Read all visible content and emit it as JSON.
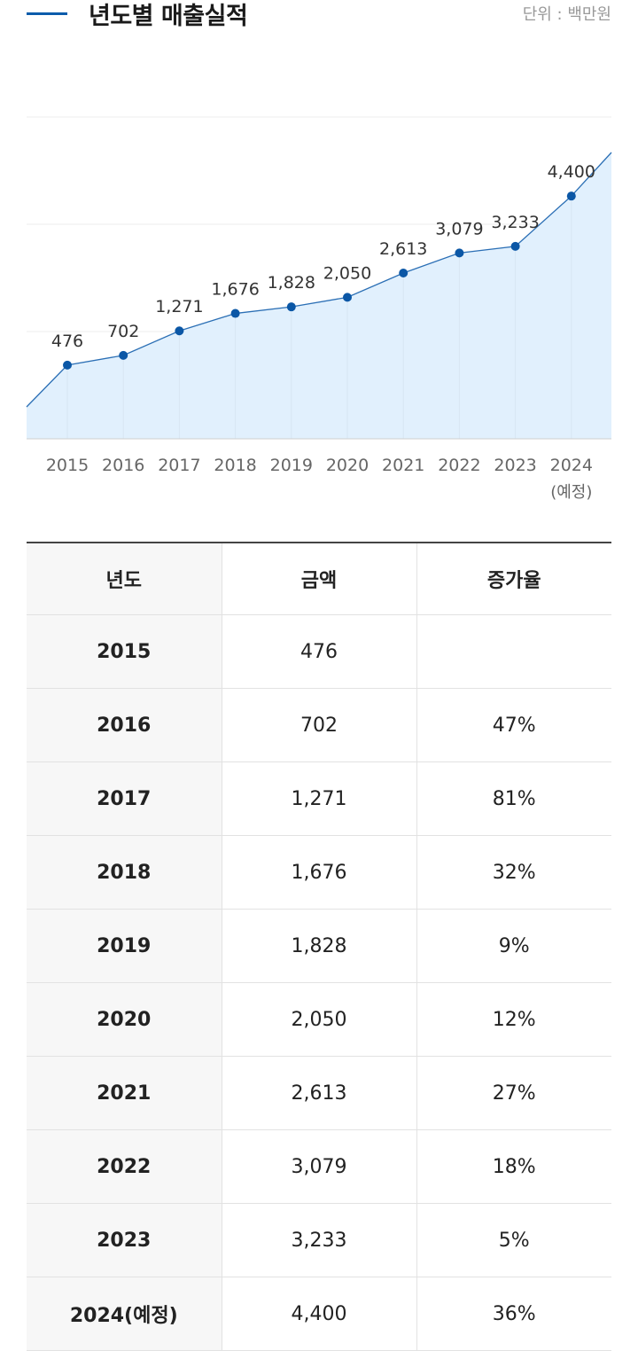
{
  "header": {
    "title": "년도별 매출실적",
    "unit": "단위 : 백만원"
  },
  "chart_data": {
    "type": "area",
    "title": "년도별 매출실적",
    "unit": "백만원",
    "categories": [
      "2015",
      "2016",
      "2017",
      "2018",
      "2019",
      "2020",
      "2021",
      "2022",
      "2023",
      "2024"
    ],
    "category_notes": [
      "",
      "",
      "",
      "",
      "",
      "",
      "",
      "",
      "",
      "(예정)"
    ],
    "values": [
      476,
      702,
      1271,
      1676,
      1828,
      2050,
      2613,
      3079,
      3233,
      4400
    ],
    "value_labels": [
      "476",
      "702",
      "1,271",
      "1,676",
      "1,828",
      "2,050",
      "2,613",
      "3,079",
      "3,233",
      "4,400"
    ],
    "grid": true,
    "legend": "none",
    "colors": {
      "line": "#2b6fb5",
      "area": "#e1f0fd",
      "point": "#0b57a6",
      "grid": "#ececec",
      "axis": "#cfcfcf"
    }
  },
  "table": {
    "headers": [
      "년도",
      "금액",
      "증가율"
    ],
    "rows": [
      [
        "2015",
        "476",
        ""
      ],
      [
        "2016",
        "702",
        "47%"
      ],
      [
        "2017",
        "1,271",
        "81%"
      ],
      [
        "2018",
        "1,676",
        "32%"
      ],
      [
        "2019",
        "1,828",
        "9%"
      ],
      [
        "2020",
        "2,050",
        "12%"
      ],
      [
        "2021",
        "2,613",
        "27%"
      ],
      [
        "2022",
        "3,079",
        "18%"
      ],
      [
        "2023",
        "3,233",
        "5%"
      ],
      [
        "2024(예정)",
        "4,400",
        "36%"
      ]
    ]
  }
}
